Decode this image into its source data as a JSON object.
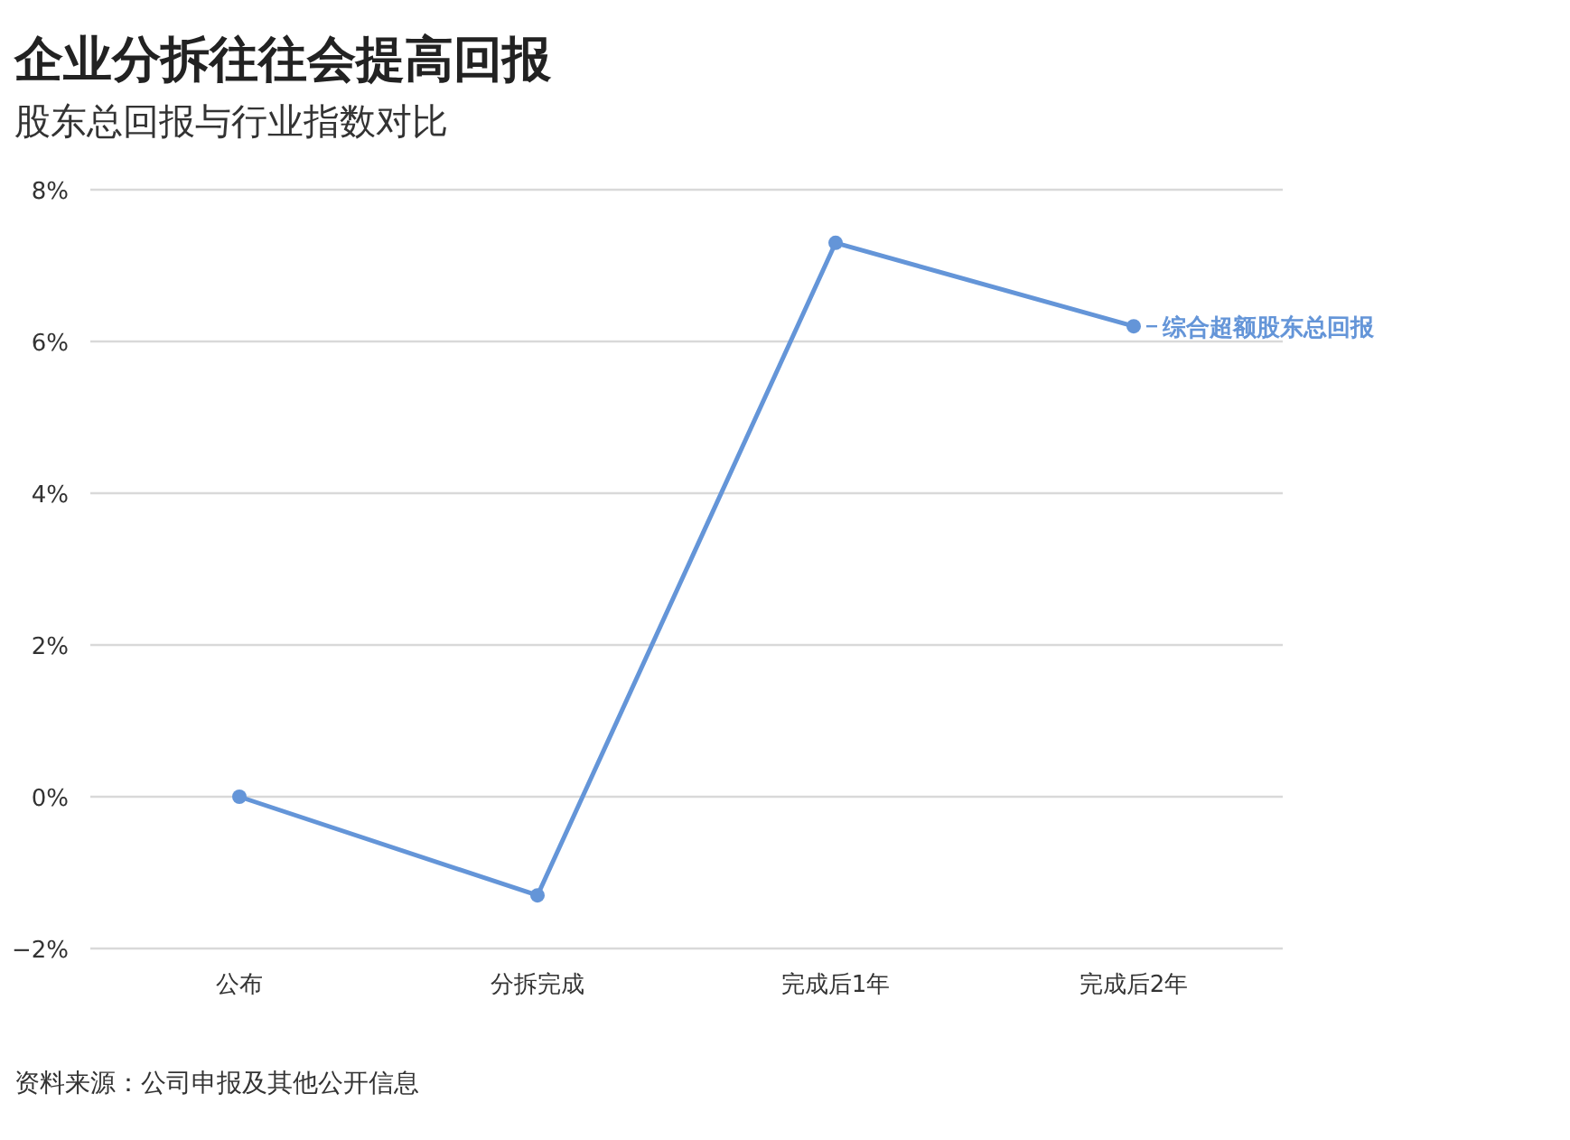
{
  "chart_data": {
    "type": "line",
    "title": "企业分拆往往会提高回报",
    "subtitle": "股东总回报与行业指数对比",
    "categories": [
      "公布",
      "分拆完成",
      "完成后1年",
      "完成后2年"
    ],
    "series": [
      {
        "name": "综合超额股东总回报",
        "color": "#6495d8",
        "values": [
          0,
          -1.3,
          7.3,
          6.2
        ]
      }
    ],
    "ylim": [
      -2,
      8
    ],
    "yticks": [
      {
        "value": -2,
        "label": "−2%"
      },
      {
        "value": 0,
        "label": "0%"
      },
      {
        "value": 2,
        "label": "2%"
      },
      {
        "value": 4,
        "label": "4%"
      },
      {
        "value": 6,
        "label": "6%"
      },
      {
        "value": 8,
        "label": "8%"
      }
    ],
    "grid": "y",
    "marker": "circle",
    "line_style": "solid",
    "legend": "right",
    "annotations": [
      "资料来源：公司申报及其他公开信息"
    ]
  }
}
